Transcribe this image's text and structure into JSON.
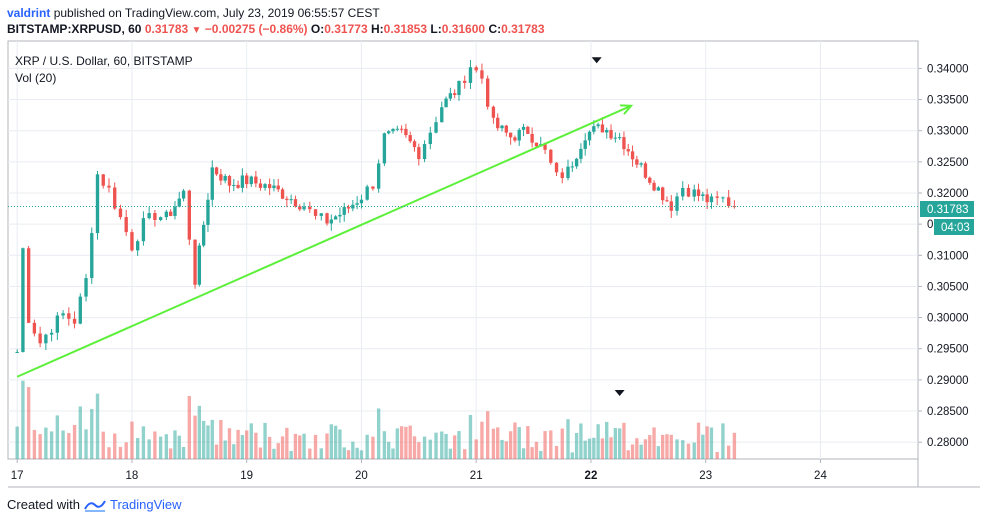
{
  "header": {
    "user": "valdrint",
    "published_text": "published on TradingView.com, July 23, 2019 06:55:57 CEST",
    "symbol_line": "BITSTAMP:XRPUSD, 60",
    "last": "0.31783",
    "change": "−0.00275 (−0.86%)",
    "o_label": "O:",
    "o_val": "0.31773",
    "h_label": "H:",
    "h_val": "0.31853",
    "l_label": "L:",
    "l_val": "0.31600",
    "c_label": "C:",
    "c_val": "0.31783"
  },
  "legend": {
    "title": "XRP / U.S. Dollar, 60, BITSTAMP",
    "vol": "Vol (20)"
  },
  "price_badge": {
    "value": "0.31783",
    "countdown": "04:03",
    "color": "#26a69a"
  },
  "footer": {
    "created_with": "Created with",
    "brand": "TradingView"
  },
  "colors": {
    "up": "#26a69a",
    "down": "#ef5350",
    "trend": "#5cf03a",
    "grid": "#e9ecf2",
    "axis": "#131722"
  },
  "chart_data": {
    "type": "candlestick",
    "title": "XRP / U.S. Dollar, 60, BITSTAMP",
    "interval": "60",
    "x_ticks": [
      "17",
      "18",
      "19",
      "20",
      "21",
      "22",
      "23",
      "24"
    ],
    "y_ticks": [
      "0.34000",
      "0.33500",
      "0.33000",
      "0.32500",
      "0.32000",
      "0.31500",
      "0.31000",
      "0.30500",
      "0.30000",
      "0.29500",
      "0.29000",
      "0.28500",
      "0.28000"
    ],
    "ylim": [
      0.2773,
      0.3444
    ],
    "x_range_days": [
      17,
      24
    ],
    "price_series": [
      {
        "t": 17.0,
        "c": 0.2945
      },
      {
        "t": 17.05,
        "c": 0.311
      },
      {
        "t": 17.1,
        "c": 0.3
      },
      {
        "t": 17.2,
        "c": 0.296
      },
      {
        "t": 17.3,
        "c": 0.2985
      },
      {
        "t": 17.4,
        "c": 0.3005
      },
      {
        "t": 17.5,
        "c": 0.2995
      },
      {
        "t": 17.6,
        "c": 0.306
      },
      {
        "t": 17.7,
        "c": 0.323
      },
      {
        "t": 17.8,
        "c": 0.3205
      },
      {
        "t": 17.9,
        "c": 0.316
      },
      {
        "t": 18.0,
        "c": 0.3115
      },
      {
        "t": 18.1,
        "c": 0.315
      },
      {
        "t": 18.2,
        "c": 0.3165
      },
      {
        "t": 18.3,
        "c": 0.316
      },
      {
        "t": 18.45,
        "c": 0.32
      },
      {
        "t": 18.55,
        "c": 0.306
      },
      {
        "t": 18.7,
        "c": 0.324
      },
      {
        "t": 18.85,
        "c": 0.3215
      },
      {
        "t": 19.0,
        "c": 0.322
      },
      {
        "t": 19.2,
        "c": 0.321
      },
      {
        "t": 19.35,
        "c": 0.3195
      },
      {
        "t": 19.5,
        "c": 0.318
      },
      {
        "t": 19.6,
        "c": 0.316
      },
      {
        "t": 19.7,
        "c": 0.3155
      },
      {
        "t": 19.85,
        "c": 0.317
      },
      {
        "t": 20.0,
        "c": 0.3195
      },
      {
        "t": 20.1,
        "c": 0.3215
      },
      {
        "t": 20.2,
        "c": 0.329
      },
      {
        "t": 20.35,
        "c": 0.3295
      },
      {
        "t": 20.5,
        "c": 0.3265
      },
      {
        "t": 20.6,
        "c": 0.33
      },
      {
        "t": 20.7,
        "c": 0.334
      },
      {
        "t": 20.85,
        "c": 0.337
      },
      {
        "t": 20.95,
        "c": 0.3405
      },
      {
        "t": 21.05,
        "c": 0.3385
      },
      {
        "t": 21.15,
        "c": 0.331
      },
      {
        "t": 21.3,
        "c": 0.329
      },
      {
        "t": 21.45,
        "c": 0.33
      },
      {
        "t": 21.6,
        "c": 0.3265
      },
      {
        "t": 21.7,
        "c": 0.3225
      },
      {
        "t": 21.8,
        "c": 0.3235
      },
      {
        "t": 21.95,
        "c": 0.3295
      },
      {
        "t": 22.1,
        "c": 0.3305
      },
      {
        "t": 22.25,
        "c": 0.329
      },
      {
        "t": 22.4,
        "c": 0.325
      },
      {
        "t": 22.55,
        "c": 0.3215
      },
      {
        "t": 22.7,
        "c": 0.318
      },
      {
        "t": 22.8,
        "c": 0.321
      },
      {
        "t": 22.9,
        "c": 0.32
      },
      {
        "t": 23.05,
        "c": 0.3185
      },
      {
        "t": 23.15,
        "c": 0.319
      },
      {
        "t": 23.25,
        "c": 0.31783
      }
    ],
    "trendline": {
      "from": {
        "t": 17.0,
        "p": 0.2905
      },
      "to": {
        "t": 22.35,
        "p": 0.334
      }
    },
    "current_price": 0.31783,
    "markers": [
      {
        "t": 22.05,
        "p": 0.3418
      }
    ],
    "volume_marker": {
      "t": 22.25
    },
    "volume": {
      "label": "Vol (20)"
    }
  }
}
